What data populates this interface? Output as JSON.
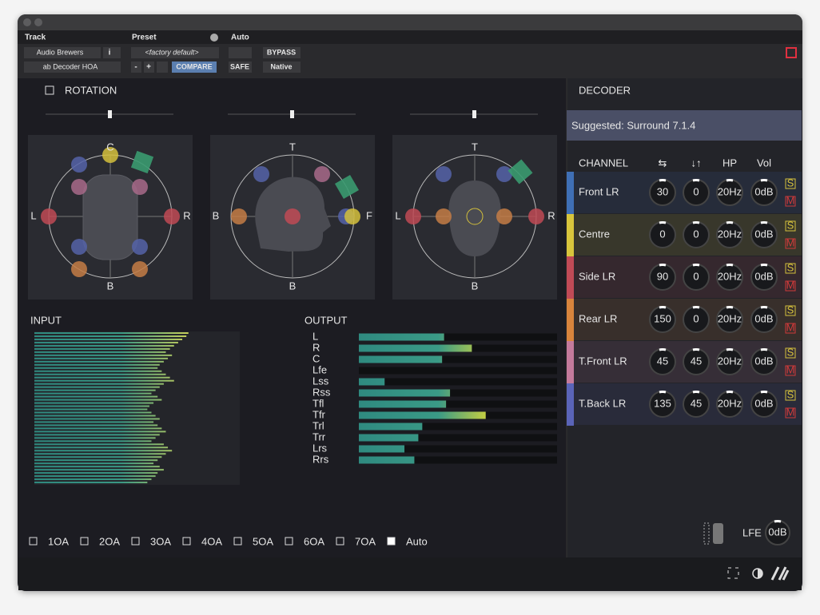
{
  "header": {
    "track_label": "Track",
    "track": "Audio Brewers",
    "info": "i",
    "plugin": "ab Decoder HOA",
    "preset_label": "Preset",
    "preset": "<factory default>",
    "minus": "-",
    "plus": "+",
    "compare": "COMPARE",
    "auto_label": "Auto",
    "safe": "SAFE",
    "bypass": "BYPASS",
    "native": "Native"
  },
  "rotation": {
    "title": "ROTATION",
    "views": [
      {
        "top": "C",
        "left": "L",
        "right": "R",
        "bottom": "B"
      },
      {
        "top": "T",
        "left": "B",
        "right": "F",
        "bottom": "B"
      },
      {
        "top": "T",
        "left": "L",
        "right": "R",
        "bottom": "B"
      }
    ]
  },
  "input": {
    "title": "INPUT",
    "levels": [
      75,
      74,
      72,
      70,
      68,
      66,
      64,
      67,
      65,
      63,
      61,
      60,
      62,
      64,
      66,
      68,
      63,
      61,
      59,
      57,
      60,
      62,
      58,
      56,
      55,
      57,
      59,
      61,
      58,
      60,
      62,
      64,
      61,
      59,
      57,
      63,
      65,
      67,
      64,
      62,
      60,
      58,
      61,
      63,
      60,
      59,
      57,
      55
    ]
  },
  "output": {
    "title": "OUTPUT",
    "channels": [
      "L",
      "R",
      "C",
      "Lfe",
      "Lss",
      "Rss",
      "Tfl",
      "Tfr",
      "Trl",
      "Trr",
      "Lrs",
      "Rrs"
    ],
    "levels": [
      43,
      57,
      42,
      0,
      13,
      46,
      44,
      64,
      32,
      30,
      23,
      28
    ]
  },
  "orders": {
    "labels": [
      "1OA",
      "2OA",
      "3OA",
      "4OA",
      "5OA",
      "6OA",
      "7OA",
      "Auto"
    ],
    "checked": [
      false,
      false,
      false,
      false,
      false,
      false,
      false,
      true
    ]
  },
  "decoder": {
    "title": "DECODER",
    "suggested": "Suggested: Surround 7.1.4",
    "headers": [
      "CHANNEL",
      "⇆",
      "↓↑",
      "HP",
      "Vol"
    ],
    "rows": [
      {
        "name": "Front LR",
        "color": "#3f6fb5",
        "azimuth": 30,
        "elevation": 0,
        "hp": "20Hz",
        "vol": "0dB",
        "solo": "S",
        "mute": "M"
      },
      {
        "name": "Centre",
        "color": "#d8c53c",
        "azimuth": 0,
        "elevation": 0,
        "hp": "20Hz",
        "vol": "0dB",
        "solo": "S",
        "mute": "M"
      },
      {
        "name": "Side LR",
        "color": "#c04a56",
        "azimuth": 90,
        "elevation": 0,
        "hp": "20Hz",
        "vol": "0dB",
        "solo": "S",
        "mute": "M"
      },
      {
        "name": "Rear LR",
        "color": "#d8843c",
        "azimuth": 150,
        "elevation": 0,
        "hp": "20Hz",
        "vol": "0dB",
        "solo": "S",
        "mute": "M"
      },
      {
        "name": "T.Front LR",
        "color": "#c47a9c",
        "azimuth": 45,
        "elevation": 45,
        "hp": "20Hz",
        "vol": "0dB",
        "solo": "S",
        "mute": "M"
      },
      {
        "name": "T.Back LR",
        "color": "#5a64b8",
        "azimuth": 135,
        "elevation": 45,
        "hp": "20Hz",
        "vol": "0dB",
        "solo": "S",
        "mute": "M"
      }
    ],
    "lfe_label": "LFE",
    "lfe": "0dB"
  }
}
